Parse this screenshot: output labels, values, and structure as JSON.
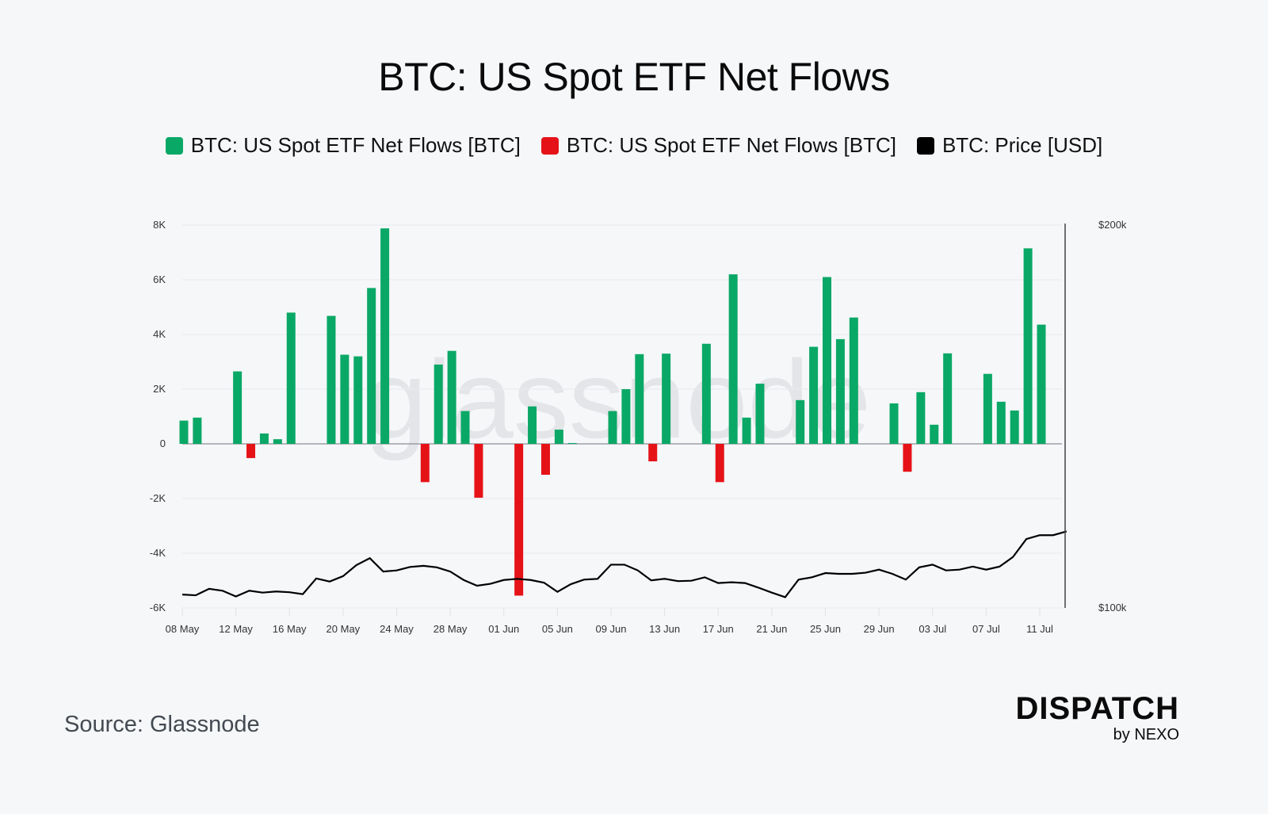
{
  "title": "BTC: US Spot ETF Net Flows",
  "legend": [
    {
      "label": "BTC: US Spot ETF Net Flows [BTC]",
      "color": "#0aa866"
    },
    {
      "label": "BTC: US Spot ETF Net Flows [BTC]",
      "color": "#e51318"
    },
    {
      "label": "BTC: Price [USD]",
      "color": "#000000"
    }
  ],
  "watermark": "glassnode",
  "source": "Source: Glassnode",
  "brand": {
    "name": "DISPATCH",
    "sub": "by NEXO"
  },
  "chart_data": {
    "type": "bar",
    "title": "BTC: US Spot ETF Net Flows",
    "xlabel": "",
    "ylabel": "Net Flows [BTC]",
    "y2label": "Price [USD]",
    "start_date": "08 May",
    "x_tick_labels": [
      "08 May",
      "12 May",
      "16 May",
      "20 May",
      "24 May",
      "28 May",
      "01 Jun",
      "05 Jun",
      "09 Jun",
      "13 Jun",
      "17 Jun",
      "21 Jun",
      "25 Jun",
      "29 Jun",
      "03 Jul",
      "07 Jul",
      "11 Jul"
    ],
    "x_tick_day_index": [
      0,
      4,
      8,
      12,
      16,
      20,
      24,
      28,
      32,
      36,
      40,
      44,
      48,
      52,
      56,
      60,
      64
    ],
    "ylim": [
      -6000,
      8000
    ],
    "y_ticks": [
      8000,
      6000,
      4000,
      2000,
      0,
      -2000,
      -4000,
      -6000
    ],
    "y_tick_labels": [
      "8K",
      "6K",
      "4K",
      "2K",
      "0",
      "-2K",
      "-4K",
      "-6K"
    ],
    "y2lim": [
      100000,
      200000
    ],
    "y2_tick_labels": [
      "$200k",
      "$100k"
    ],
    "grid": true,
    "legend_position": "top-center",
    "positive_color": "#0aa866",
    "negative_color": "#e51318",
    "flows": [
      {
        "day": 0,
        "date": "08 May",
        "value": 850
      },
      {
        "day": 1,
        "date": "09 May",
        "value": 960
      },
      {
        "day": 4,
        "date": "12 May",
        "value": 2650
      },
      {
        "day": 5,
        "date": "13 May",
        "value": -520
      },
      {
        "day": 6,
        "date": "14 May",
        "value": 380
      },
      {
        "day": 7,
        "date": "15 May",
        "value": 170
      },
      {
        "day": 8,
        "date": "16 May",
        "value": 4800
      },
      {
        "day": 11,
        "date": "19 May",
        "value": 4680
      },
      {
        "day": 12,
        "date": "20 May",
        "value": 3260
      },
      {
        "day": 13,
        "date": "21 May",
        "value": 3200
      },
      {
        "day": 14,
        "date": "22 May",
        "value": 5700
      },
      {
        "day": 15,
        "date": "23 May",
        "value": 7880
      },
      {
        "day": 18,
        "date": "26 May",
        "value": -1400
      },
      {
        "day": 19,
        "date": "27 May",
        "value": 2900
      },
      {
        "day": 20,
        "date": "28 May",
        "value": 3400
      },
      {
        "day": 21,
        "date": "29 May",
        "value": 1200
      },
      {
        "day": 22,
        "date": "30 May",
        "value": -1970
      },
      {
        "day": 25,
        "date": "02 Jun",
        "value": -5550
      },
      {
        "day": 26,
        "date": "03 Jun",
        "value": 1370
      },
      {
        "day": 27,
        "date": "04 Jun",
        "value": -1130
      },
      {
        "day": 28,
        "date": "05 Jun",
        "value": 520
      },
      {
        "day": 29,
        "date": "06 Jun",
        "value": 30
      },
      {
        "day": 32,
        "date": "09 Jun",
        "value": 1200
      },
      {
        "day": 33,
        "date": "10 Jun",
        "value": 2000
      },
      {
        "day": 34,
        "date": "11 Jun",
        "value": 3280
      },
      {
        "day": 35,
        "date": "12 Jun",
        "value": -640
      },
      {
        "day": 36,
        "date": "13 Jun",
        "value": 3300
      },
      {
        "day": 39,
        "date": "16 Jun",
        "value": 3660
      },
      {
        "day": 40,
        "date": "17 Jun",
        "value": -1400
      },
      {
        "day": 41,
        "date": "18 Jun",
        "value": 6200
      },
      {
        "day": 42,
        "date": "19 Jun",
        "value": 960
      },
      {
        "day": 43,
        "date": "20 Jun",
        "value": 2200
      },
      {
        "day": 46,
        "date": "23 Jun",
        "value": 1600
      },
      {
        "day": 47,
        "date": "24 Jun",
        "value": 3550
      },
      {
        "day": 48,
        "date": "25 Jun",
        "value": 6100
      },
      {
        "day": 49,
        "date": "26 Jun",
        "value": 3830
      },
      {
        "day": 50,
        "date": "27 Jun",
        "value": 4620
      },
      {
        "day": 53,
        "date": "30 Jun",
        "value": 1480
      },
      {
        "day": 54,
        "date": "01 Jul",
        "value": -1020
      },
      {
        "day": 55,
        "date": "02 Jul",
        "value": 1890
      },
      {
        "day": 56,
        "date": "03 Jul",
        "value": 700
      },
      {
        "day": 57,
        "date": "04 Jul",
        "value": 3310
      },
      {
        "day": 60,
        "date": "07 Jul",
        "value": 2560
      },
      {
        "day": 61,
        "date": "08 Jul",
        "value": 1540
      },
      {
        "day": 62,
        "date": "09 Jul",
        "value": 1220
      },
      {
        "day": 63,
        "date": "10 Jul",
        "value": 7150
      },
      {
        "day": 64,
        "date": "11 Jul",
        "value": 4360
      }
    ],
    "price": [
      103500,
      103300,
      105000,
      104500,
      103000,
      104500,
      104000,
      104300,
      104100,
      103600,
      107700,
      106900,
      108300,
      111200,
      113000,
      109500,
      109800,
      110700,
      111000,
      110600,
      109500,
      107300,
      105800,
      106300,
      107300,
      107600,
      107300,
      106600,
      104200,
      106200,
      107400,
      107600,
      111300,
      111300,
      109800,
      107200,
      107600,
      107000,
      107100,
      108000,
      106500,
      106700,
      106500,
      105300,
      104000,
      102800,
      107400,
      108000,
      109100,
      108900,
      108900,
      109200,
      110000,
      108900,
      107400,
      110600,
      111300,
      109800,
      110000,
      110800,
      110000,
      110800,
      113300,
      118000,
      119000,
      119000,
      120000
    ]
  }
}
